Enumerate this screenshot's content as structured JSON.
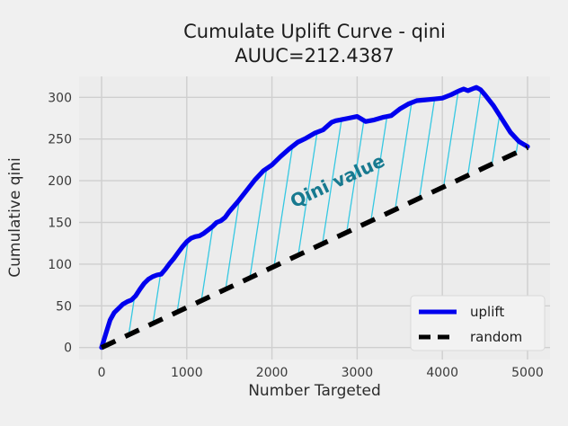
{
  "figure": {
    "title_line1": "Cumulate Uplift Curve - qini",
    "title_line2": "AUUC=212.4387",
    "xlabel": "Number Targeted",
    "ylabel": "Cumulative qini",
    "annotation": "Qini value",
    "legend": {
      "uplift_label": "uplift",
      "random_label": "random"
    }
  },
  "colors": {
    "uplift": "#0000ee",
    "random": "#000000",
    "hatch": "#35c8e2",
    "annotation": "#17798f",
    "grid": "#cfcfcf",
    "panel": "#ececec",
    "figure_bg": "#f0f0f0",
    "legend_bg": "#f2f2f2",
    "legend_border": "#d9d9d9"
  },
  "chart_data": {
    "type": "line",
    "title": "Cumulate Uplift Curve - qini",
    "subtitle": "AUUC=212.4387",
    "xlabel": "Number Targeted",
    "ylabel": "Cumulative qini",
    "xlim": [
      -264,
      5264
    ],
    "ylim": [
      -14.3,
      325.1
    ],
    "xticks": [
      0,
      1000,
      2000,
      3000,
      4000,
      5000
    ],
    "yticks": [
      0,
      50,
      100,
      150,
      200,
      250,
      300
    ],
    "grid": true,
    "legend_position": "lower right",
    "hatch_between": [
      "uplift",
      "random"
    ],
    "annotation": {
      "text": "Qini value",
      "x": 2800,
      "y": 193,
      "rotation_deg": -25
    },
    "series": [
      {
        "name": "uplift",
        "style": "solid",
        "color": "#0000ee",
        "x": [
          0,
          30,
          60,
          100,
          150,
          200,
          250,
          300,
          350,
          400,
          450,
          500,
          550,
          600,
          650,
          700,
          750,
          800,
          850,
          900,
          950,
          1000,
          1050,
          1100,
          1150,
          1200,
          1250,
          1300,
          1350,
          1400,
          1450,
          1500,
          1600,
          1700,
          1800,
          1900,
          2000,
          2100,
          2200,
          2300,
          2400,
          2500,
          2600,
          2700,
          2750,
          2800,
          2900,
          3000,
          3050,
          3100,
          3200,
          3300,
          3400,
          3500,
          3600,
          3700,
          3800,
          3900,
          4000,
          4100,
          4200,
          4250,
          4300,
          4350,
          4400,
          4450,
          4500,
          4600,
          4700,
          4800,
          4900,
          4950,
          5000
        ],
        "y": [
          0,
          10,
          20,
          33,
          42,
          47,
          52,
          55,
          57,
          62,
          70,
          77,
          82,
          85,
          87,
          88,
          94,
          101,
          107,
          114,
          121,
          127,
          131,
          133,
          134,
          137,
          141,
          145,
          150,
          152,
          156,
          163,
          175,
          188,
          201,
          212,
          219,
          229,
          238,
          246,
          251,
          257,
          261,
          270,
          272,
          273,
          275,
          277,
          274,
          271,
          273,
          276,
          278,
          286,
          292,
          296,
          297,
          298,
          299,
          303,
          308,
          310,
          308,
          310,
          312,
          309,
          303,
          290,
          274,
          258,
          247,
          244,
          241
        ]
      },
      {
        "name": "random",
        "style": "dashed",
        "color": "#000000",
        "x": [
          0,
          5000
        ],
        "y": [
          0,
          240
        ]
      }
    ]
  }
}
